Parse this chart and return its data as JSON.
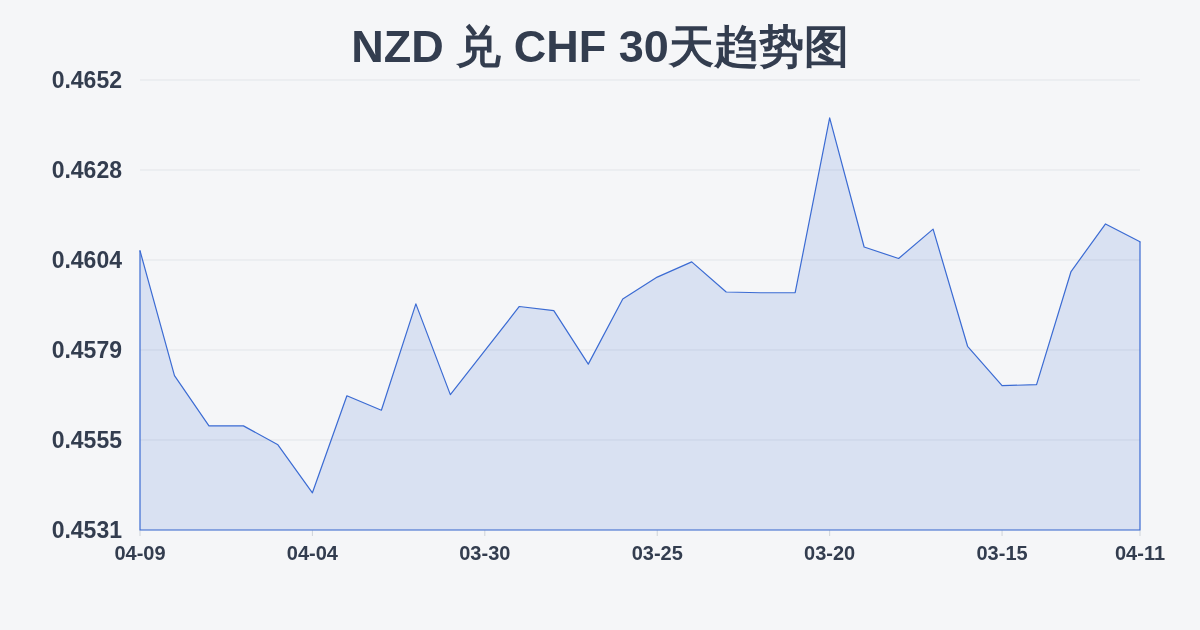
{
  "chart_data": {
    "type": "area",
    "title": "NZD 兑 CHF 30天趋势图",
    "categories": [
      "04-09",
      null,
      null,
      null,
      null,
      "04-04",
      null,
      null,
      null,
      null,
      "03-30",
      null,
      null,
      null,
      null,
      "03-25",
      null,
      null,
      null,
      null,
      "03-20",
      null,
      null,
      null,
      null,
      "03-15",
      null,
      null,
      null,
      "04-11"
    ],
    "series": [
      {
        "color": "#3b6bd3",
        "values": [
          0.46061,
          0.45725,
          0.4559,
          0.4559,
          0.45539,
          0.4541,
          0.45671,
          0.45632,
          0.45918,
          0.45674,
          0.45792,
          0.45911,
          0.459,
          0.45756,
          0.45931,
          0.4599,
          0.46031,
          0.4595,
          0.45948,
          0.45948,
          0.46418,
          0.46071,
          0.4604,
          0.46119,
          0.45804,
          0.45698,
          0.45701,
          0.46005,
          0.46133,
          0.46085
        ]
      }
    ],
    "ylim": [
      0.4531,
      0.4652
    ],
    "yticks": [
      0.4531,
      {
        "value": 0.45552,
        "label": "0.4555"
      },
      {
        "value": 0.45794,
        "label": "0.4579"
      },
      {
        "value": 0.46036,
        "label": "0.4604"
      },
      {
        "value": 0.46278,
        "label": "0.4628"
      },
      0.4652
    ],
    "grid": "y"
  }
}
